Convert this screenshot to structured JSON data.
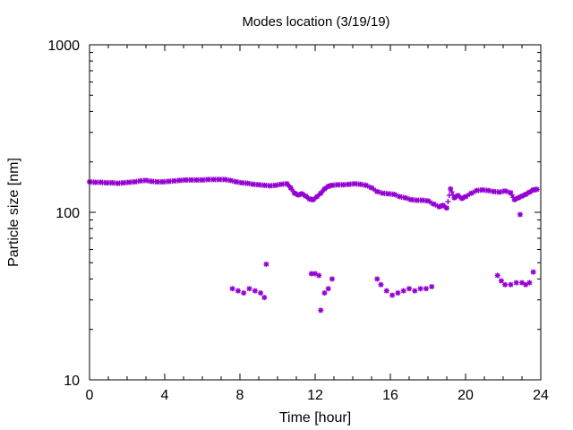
{
  "chart_data": {
    "type": "scatter",
    "title": "Modes location (3/19/19)",
    "xlabel": "Time [hour]",
    "ylabel": "Particle size [nm]",
    "xlim": [
      0,
      24
    ],
    "ylim": [
      10,
      1000
    ],
    "yscale": "log",
    "grid": false,
    "legend": "none",
    "marker_color": "#9400d3",
    "xticks": [
      0,
      4,
      8,
      12,
      16,
      20,
      24
    ],
    "xtick_labels": [
      "0",
      "4",
      "8",
      "12",
      "16",
      "20",
      "24"
    ],
    "yticks": [
      10,
      100,
      1000
    ],
    "ytick_labels": [
      "10",
      "100",
      "1000"
    ],
    "series": [
      {
        "mode": "primary",
        "x": [
          0.0,
          0.3,
          0.6,
          0.9,
          1.2,
          1.5,
          1.8,
          2.1,
          2.4,
          2.7,
          3.0,
          3.3,
          3.6,
          3.9,
          4.2,
          4.5,
          4.8,
          5.1,
          5.4,
          5.7,
          6.0,
          6.3,
          6.6,
          6.9,
          7.2,
          7.5,
          7.8,
          8.1,
          8.4,
          8.7,
          9.0,
          9.3,
          9.6,
          9.9,
          10.2,
          10.5,
          10.7,
          10.9,
          11.1,
          11.3,
          11.5,
          11.7,
          11.9,
          12.1,
          12.3,
          12.5,
          12.7,
          12.9,
          13.2,
          13.5,
          13.8,
          14.1,
          14.4,
          14.7,
          15.0,
          15.3,
          15.6,
          15.9,
          16.2,
          16.5,
          16.8,
          17.1,
          17.4,
          17.7,
          18.0,
          18.3,
          18.6,
          18.8,
          19.0,
          19.2,
          19.4,
          19.6,
          19.8,
          20.0,
          20.3,
          20.6,
          20.9,
          21.2,
          21.5,
          21.8,
          22.1,
          22.4,
          22.6,
          22.8,
          23.0,
          23.2,
          23.4,
          23.6,
          23.8
        ],
        "y": [
          152,
          151,
          151,
          150,
          150,
          149,
          150,
          151,
          152,
          154,
          155,
          153,
          152,
          152,
          153,
          154,
          155,
          156,
          156,
          156,
          156,
          157,
          157,
          157,
          157,
          155,
          152,
          150,
          149,
          147,
          146,
          145,
          144,
          145,
          147,
          148,
          140,
          130,
          127,
          129,
          125,
          120,
          119,
          124,
          130,
          138,
          143,
          145,
          146,
          146,
          147,
          148,
          147,
          145,
          140,
          133,
          130,
          129,
          128,
          124,
          122,
          119,
          118,
          118,
          117,
          112,
          108,
          110,
          106,
          138,
          122,
          126,
          121,
          124,
          130,
          135,
          136,
          135,
          133,
          132,
          134,
          131,
          119,
          122,
          125,
          128,
          132,
          136,
          137
        ]
      },
      {
        "mode": "secondary",
        "x": [
          7.6,
          7.9,
          8.2,
          8.5,
          8.8,
          9.1,
          9.3,
          9.4,
          11.8,
          12.0,
          12.2,
          12.3,
          12.5,
          12.7,
          12.9,
          15.3,
          15.5,
          15.8,
          16.1,
          16.4,
          16.7,
          17.0,
          17.3,
          17.6,
          17.9,
          18.2,
          21.7,
          21.9,
          22.1,
          22.4,
          22.7,
          23.0,
          23.2,
          23.4,
          23.6,
          22.9
        ],
        "y": [
          35,
          34,
          33,
          35,
          34,
          33,
          31,
          49,
          43,
          43,
          42,
          26,
          33,
          35,
          40,
          40,
          37,
          34,
          32,
          33,
          34,
          35,
          34,
          35,
          35,
          36,
          42,
          39,
          37,
          37,
          38,
          38,
          37,
          38,
          44,
          97
        ]
      }
    ]
  }
}
